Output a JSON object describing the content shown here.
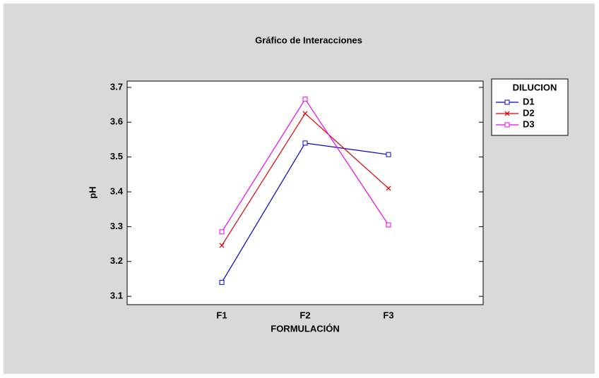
{
  "chart_data": {
    "type": "line",
    "title": "Gráfico de Interacciones",
    "x_label": "FORMULACIÓN",
    "y_label": "pH",
    "legend_title": "DILUCION",
    "legend_position": "right",
    "categories": [
      "F1",
      "F2",
      "F3"
    ],
    "series": [
      {
        "name": "D1",
        "color": "#0000cc",
        "marker": "square",
        "values": [
          3.14,
          3.54,
          3.507
        ]
      },
      {
        "name": "D2",
        "color": "#dd0000",
        "marker": "x",
        "values": [
          3.246,
          3.625,
          3.41
        ]
      },
      {
        "name": "D3",
        "color": "#ee00ee",
        "marker": "square",
        "values": [
          3.285,
          3.666,
          3.305
        ]
      }
    ],
    "ylim": [
      3.076,
      3.718
    ],
    "yticks": [
      3.1,
      3.2,
      3.3,
      3.4,
      3.5,
      3.6,
      3.7
    ]
  }
}
